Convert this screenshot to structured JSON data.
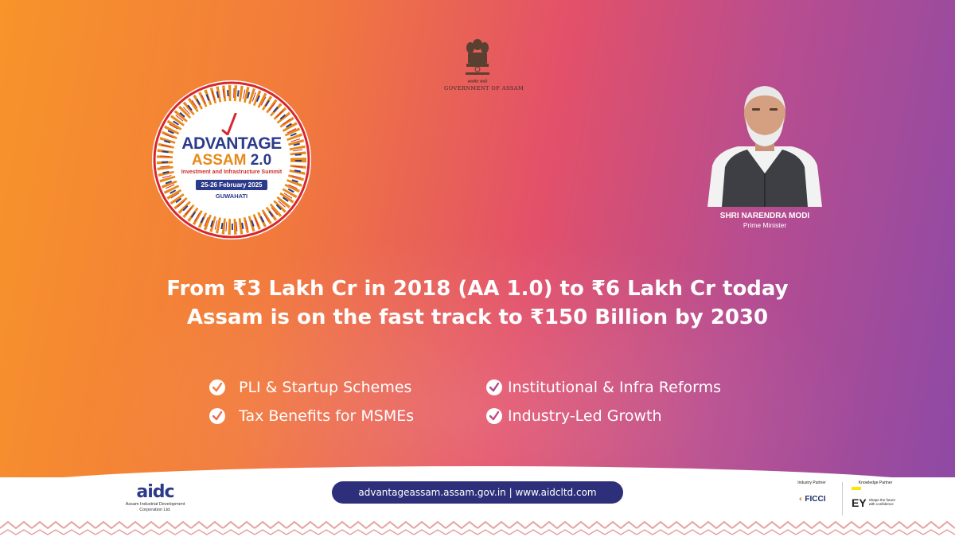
{
  "emblem": {
    "motto": "सत्यमेव जयते",
    "government_label": "GOVERNMENT OF ASSAM"
  },
  "summit_badge": {
    "title_line1": "ADVANTAGE",
    "title_line2": "ASSAM",
    "version": "2.0",
    "subtitle": "Investment and Infrastructure Summit",
    "dates": "25-26 February 2025",
    "city": "GUWAHATI"
  },
  "pm": {
    "name": "SHRI NARENDRA MODI",
    "role": "Prime Minister"
  },
  "headline": {
    "line1": "From ₹3 Lakh Cr in 2018 (AA 1.0) to ₹6 Lakh Cr today",
    "line2": "Assam is on the fast track to ₹150 Billion by 2030"
  },
  "bullets": [
    {
      "label": "PLI & Startup Schemes",
      "icon": "check-circle-icon"
    },
    {
      "label": "Institutional & Infra Reforms",
      "icon": "check-circle-icon"
    },
    {
      "label": "Tax Benefits for MSMEs",
      "icon": "check-circle-icon"
    },
    {
      "label": "Industry-Led Growth",
      "icon": "check-circle-icon"
    }
  ],
  "footer": {
    "aidc_mark": "aidc",
    "aidc_name": "Assam Industrial Development Corporation Ltd.",
    "urls": "advantageassam.assam.gov.in  |  www.aidcltd.com",
    "industry_partner_label": "Industry Partner",
    "industry_partner": "FICCI",
    "knowledge_partner_label": "Knowledge Partner",
    "knowledge_partner": "EY",
    "knowledge_partner_tagline": "Shape the future with confidence"
  },
  "colors": {
    "gradient_start": "#f7942a",
    "gradient_mid": "#e2506a",
    "gradient_end": "#8c4aa6",
    "navy": "#2e2f7a"
  }
}
